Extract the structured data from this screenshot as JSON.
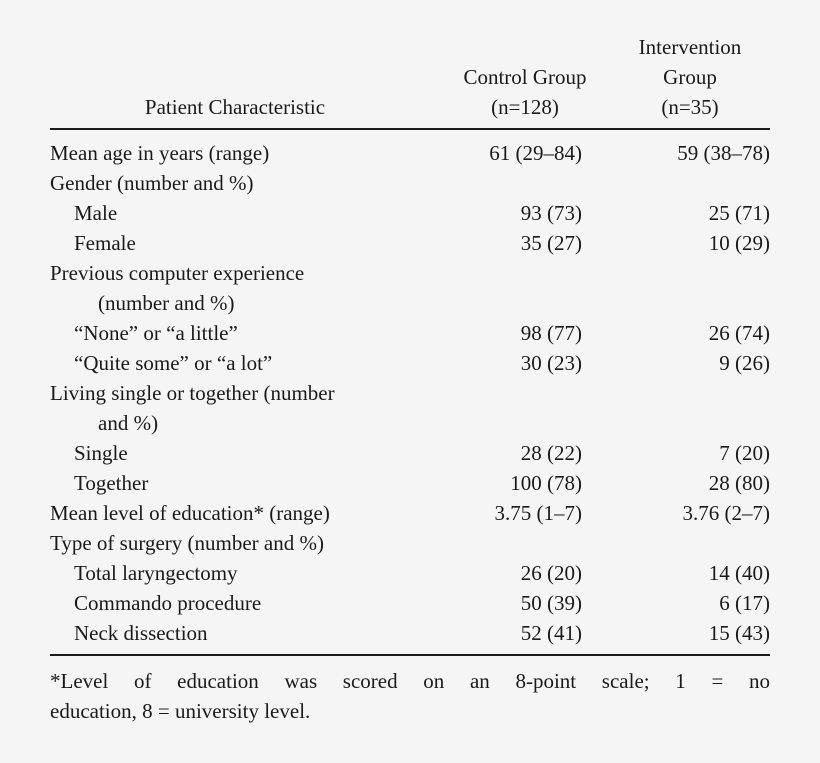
{
  "table": {
    "headers": {
      "characteristic": "Patient Characteristic",
      "control_line1": "Control Group",
      "control_line2": "(n=128)",
      "intervention_line1": "Intervention",
      "intervention_line2": "Group",
      "intervention_line3": "(n=35)"
    },
    "rows": [
      {
        "label": "Mean age in years (range)",
        "control": "61 (29–84)",
        "intervention": "59 (38–78)",
        "indent": false
      },
      {
        "label": "Gender (number and %)",
        "control": "",
        "intervention": "",
        "indent": false
      },
      {
        "label": "Male",
        "control": "93 (73)",
        "intervention": "25 (71)",
        "indent": true
      },
      {
        "label": "Female",
        "control": "35 (27)",
        "intervention": "10 (29)",
        "indent": true
      },
      {
        "label": "Previous computer experience",
        "label_cont": "(number and %)",
        "control": "",
        "intervention": "",
        "indent": false
      },
      {
        "label": "“None” or “a little”",
        "control": "98 (77)",
        "intervention": "26 (74)",
        "indent": true
      },
      {
        "label": "“Quite some” or “a lot”",
        "control": "30 (23)",
        "intervention": "9 (26)",
        "indent": true
      },
      {
        "label": "Living single or together (number",
        "label_cont": "and %)",
        "control": "",
        "intervention": "",
        "indent": false
      },
      {
        "label": "Single",
        "control": "28 (22)",
        "intervention": "7 (20)",
        "indent": true
      },
      {
        "label": "Together",
        "control": "100 (78)",
        "intervention": "28 (80)",
        "indent": true
      },
      {
        "label": "Mean level of education* (range)",
        "control": "3.75 (1–7)",
        "intervention": "3.76 (2–7)",
        "indent": false
      },
      {
        "label": "Type of surgery (number and %)",
        "control": "",
        "intervention": "",
        "indent": false
      },
      {
        "label": "Total laryngectomy",
        "control": "26 (20)",
        "intervention": "14 (40)",
        "indent": true
      },
      {
        "label": "Commando procedure",
        "control": "50 (39)",
        "intervention": "6 (17)",
        "indent": true
      },
      {
        "label": "Neck dissection",
        "control": "52 (41)",
        "intervention": "15 (43)",
        "indent": true
      }
    ]
  },
  "footnote": {
    "line1": "*Level of education was scored on an 8-point scale; 1 = no",
    "line2": "education, 8 = university level."
  },
  "colors": {
    "background": "#f5f5f5",
    "text": "#1a1a1a"
  }
}
